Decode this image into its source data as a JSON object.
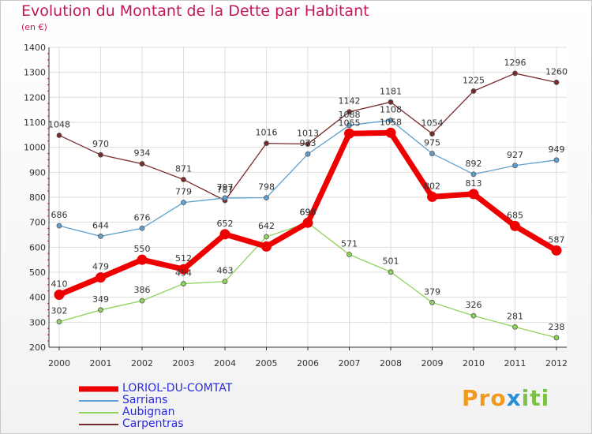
{
  "chart_data": {
    "type": "line",
    "title": "Evolution du Montant de la Dette par Habitant",
    "subtitle": "(en €)",
    "x": [
      "2000",
      "2001",
      "2002",
      "2003",
      "2004",
      "2005",
      "2006",
      "2007",
      "2008",
      "2009",
      "2010",
      "2011",
      "2012"
    ],
    "ylim": [
      200,
      1400
    ],
    "yticks": [
      200,
      300,
      400,
      500,
      600,
      700,
      800,
      900,
      1000,
      1100,
      1200,
      1300,
      1400
    ],
    "grid": true,
    "legend_position": "bottom-left",
    "series": [
      {
        "name": "LORIOL-DU-COMTAT",
        "color": "#ee0000",
        "values": [
          410,
          479,
          550,
          512,
          652,
          603,
          698,
          1055,
          1058,
          802,
          813,
          685,
          587
        ],
        "labels": [
          "410",
          "479",
          "550",
          "512",
          "652",
          "",
          "698",
          "1055",
          "1058",
          "802",
          "813",
          "685",
          "587"
        ]
      },
      {
        "name": "Sarrians",
        "color": "#5fa0d0",
        "values": [
          686,
          644,
          676,
          779,
          797,
          798,
          973,
          1088,
          1108,
          975,
          892,
          927,
          949
        ],
        "labels": [
          "686",
          "644",
          "676",
          "779",
          "797",
          "798",
          "973",
          "1088",
          "1108",
          "975",
          "892",
          "927",
          "949"
        ]
      },
      {
        "name": "Aubignan",
        "color": "#8fd35a",
        "values": [
          302,
          349,
          386,
          454,
          463,
          642,
          698,
          571,
          501,
          379,
          326,
          281,
          238
        ],
        "labels": [
          "302",
          "349",
          "386",
          "454",
          "463",
          "642",
          "698",
          "571",
          "501",
          "379",
          "326",
          "281",
          "238"
        ]
      },
      {
        "name": "Carpentras",
        "color": "#7a2a2a",
        "values": [
          1048,
          970,
          934,
          871,
          787,
          1016,
          1013,
          1142,
          1181,
          1054,
          1225,
          1296,
          1260
        ],
        "labels": [
          "1048",
          "970",
          "934",
          "871",
          "787",
          "1016",
          "1013",
          "1142",
          "1181",
          "1054",
          "1225",
          "1296",
          "1260"
        ]
      }
    ]
  },
  "legend": {
    "items": [
      "LORIOL-DU-COMTAT",
      "Sarrians",
      "Aubignan",
      "Carpentras"
    ]
  },
  "logo": {
    "p1": "Pro",
    "p2": "x",
    "p3": "iti"
  }
}
